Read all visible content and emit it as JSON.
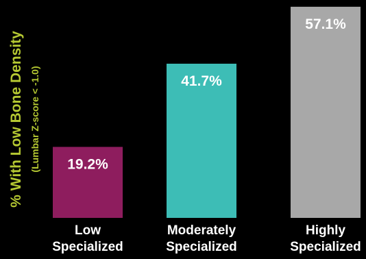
{
  "chart_data": {
    "type": "bar",
    "categories": [
      [
        "Low",
        "Specialized"
      ],
      [
        "Moderately",
        "Specialized"
      ],
      [
        "Highly",
        "Specialized"
      ]
    ],
    "values": [
      19.2,
      41.7,
      57.1
    ],
    "value_labels": [
      "19.2%",
      "41.7%",
      "57.1%"
    ],
    "title": "",
    "xlabel": "",
    "ylabel": "% With Low Bone Density",
    "ylabel_sub": "(Lumbar Z-score < -1.0)",
    "ylim": [
      0,
      58
    ],
    "grid": false,
    "legend": "none"
  },
  "colors": {
    "background": "#000000",
    "bars": [
      "#8e1d5e",
      "#3dbdb6",
      "#a8a8a8"
    ],
    "value_label": "#ffffff",
    "category_label": "#ffffff",
    "ylabel": "#b5c832"
  }
}
